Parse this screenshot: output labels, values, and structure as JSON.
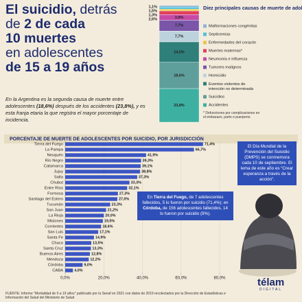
{
  "headline": [
    "El suicidio,",
    "detrás",
    "de",
    "2 de cada",
    "10 muertes",
    "en adolescentes",
    "de 15 a 19 años"
  ],
  "intro": [
    "En la Argentina es la segunda causa de muerte entre adolescentes",
    "(18,6%)",
    "después de los accidentes",
    "(23,8%),",
    "y es esta franja etaria la que registra el mayor porcentaje de incidencia."
  ],
  "chart_data": [
    {
      "type": "stacked",
      "title": "Diez principales causas de muerte de adolescentes",
      "categories": [
        "Malformaciones congénitas",
        "Septicemias",
        "Enfermedades del corazón",
        "Muertes maternas*",
        "Neumonía e influenza",
        "Tumores malignos",
        "Homicidio",
        "Eventos violentos de intención no determinada",
        "Suicidios",
        "Accidentes"
      ],
      "values": [
        1.1,
        1.5,
        1.3,
        2.6,
        3.9,
        7.7,
        7.7,
        14.5,
        18.6,
        23.8
      ],
      "value_labels": [
        "1,1%",
        "1,5%",
        "1,3%",
        "2,6%",
        "3,9%",
        "7,7%",
        "7,7%",
        "14,5%",
        "18,6%",
        "23,8%"
      ],
      "colors": [
        "#8fb3d9",
        "#4fc3d9",
        "#e8c54a",
        "#e2405b",
        "#c64aa6",
        "#7a55a8",
        "#bcd2dc",
        "#2f7f7a",
        "#5f9f9b",
        "#3db0a2"
      ],
      "footnote": "* Defunciones por complicaciones en el embarazo, parto o puerperio."
    },
    {
      "type": "hbar",
      "title": "PORCENTAJE DE MUERTE DE ADOLESCENTES POR SUICIDIO, POR JURISDICCIÓN",
      "categories": [
        "Tierra del Fuego",
        "La Pampa",
        "Neuquén",
        "Río Negro",
        "Catamarca",
        "Jujuy",
        "Salta",
        "Chubut",
        "Entre Ríos",
        "Formosa",
        "Santiago del Estero",
        "Tucumán",
        "San Juan",
        "La Rioja",
        "Misiones",
        "Corrientes",
        "San Luis",
        "Santa Fe",
        "Chaco",
        "Santa Cruz",
        "Buenos Aires",
        "Mendoza",
        "Córdoba",
        "CABA"
      ],
      "values": [
        71.4,
        66.7,
        41.9,
        39.3,
        39.1,
        38.8,
        37.3,
        33.3,
        32.1,
        27.3,
        27.0,
        23.3,
        21.2,
        20.0,
        19.5,
        18.6,
        17.1,
        14.9,
        13.5,
        13.3,
        12.8,
        12.2,
        9.0,
        4.0
      ],
      "value_labels": [
        "71,4%",
        "66,7%",
        "41,9%",
        "39,3%",
        "39,1%",
        "38,8%",
        "37,3%",
        "33,3%",
        "32,1%",
        "27,3%",
        "27,0%",
        "23,3%",
        "21,2%",
        "20,0%",
        "19,5%",
        "18,6%",
        "17,1%",
        "14,9%",
        "13,5%",
        "13,3%",
        "12,8%",
        "12,2%",
        "9,0%",
        "4,0%"
      ],
      "color": "#3b55c4",
      "xlim": [
        0,
        80
      ],
      "xticks": [
        {
          "value": 0,
          "label": "0,0%"
        },
        {
          "value": 20,
          "label": "20,0%"
        },
        {
          "value": 40,
          "label": "40,0%"
        },
        {
          "value": 60,
          "label": "60,0%"
        },
        {
          "value": 80,
          "label": "80,0%"
        }
      ],
      "grid": true
    }
  ],
  "callout": "El Día Mundial de la Prevención del Suicidio (DMPS) se conmemora cada 10 de septiembre. El lema de este año es “Crear esperanza a través de la acción”.",
  "note": [
    "En",
    "Tierra del Fuego,",
    "de 7 adolescentes fallecidos, 5 lo fueron por suicidio (71,4%);",
    "en",
    "Córdoba,",
    "de 156 adolescentes fallecidos, 14 lo fueron por suicidio (9%)."
  ],
  "source": "FUENTE: Informe \"Mortalidad de 0 a 19 años\" publicado por la Senaf en 2021 con datos de 2019 recolectados por la Dirección de Estadísticas e Información del Salud del Ministerio de Salud",
  "logo": {
    "name": "télam",
    "sub": "DIGITAL"
  }
}
